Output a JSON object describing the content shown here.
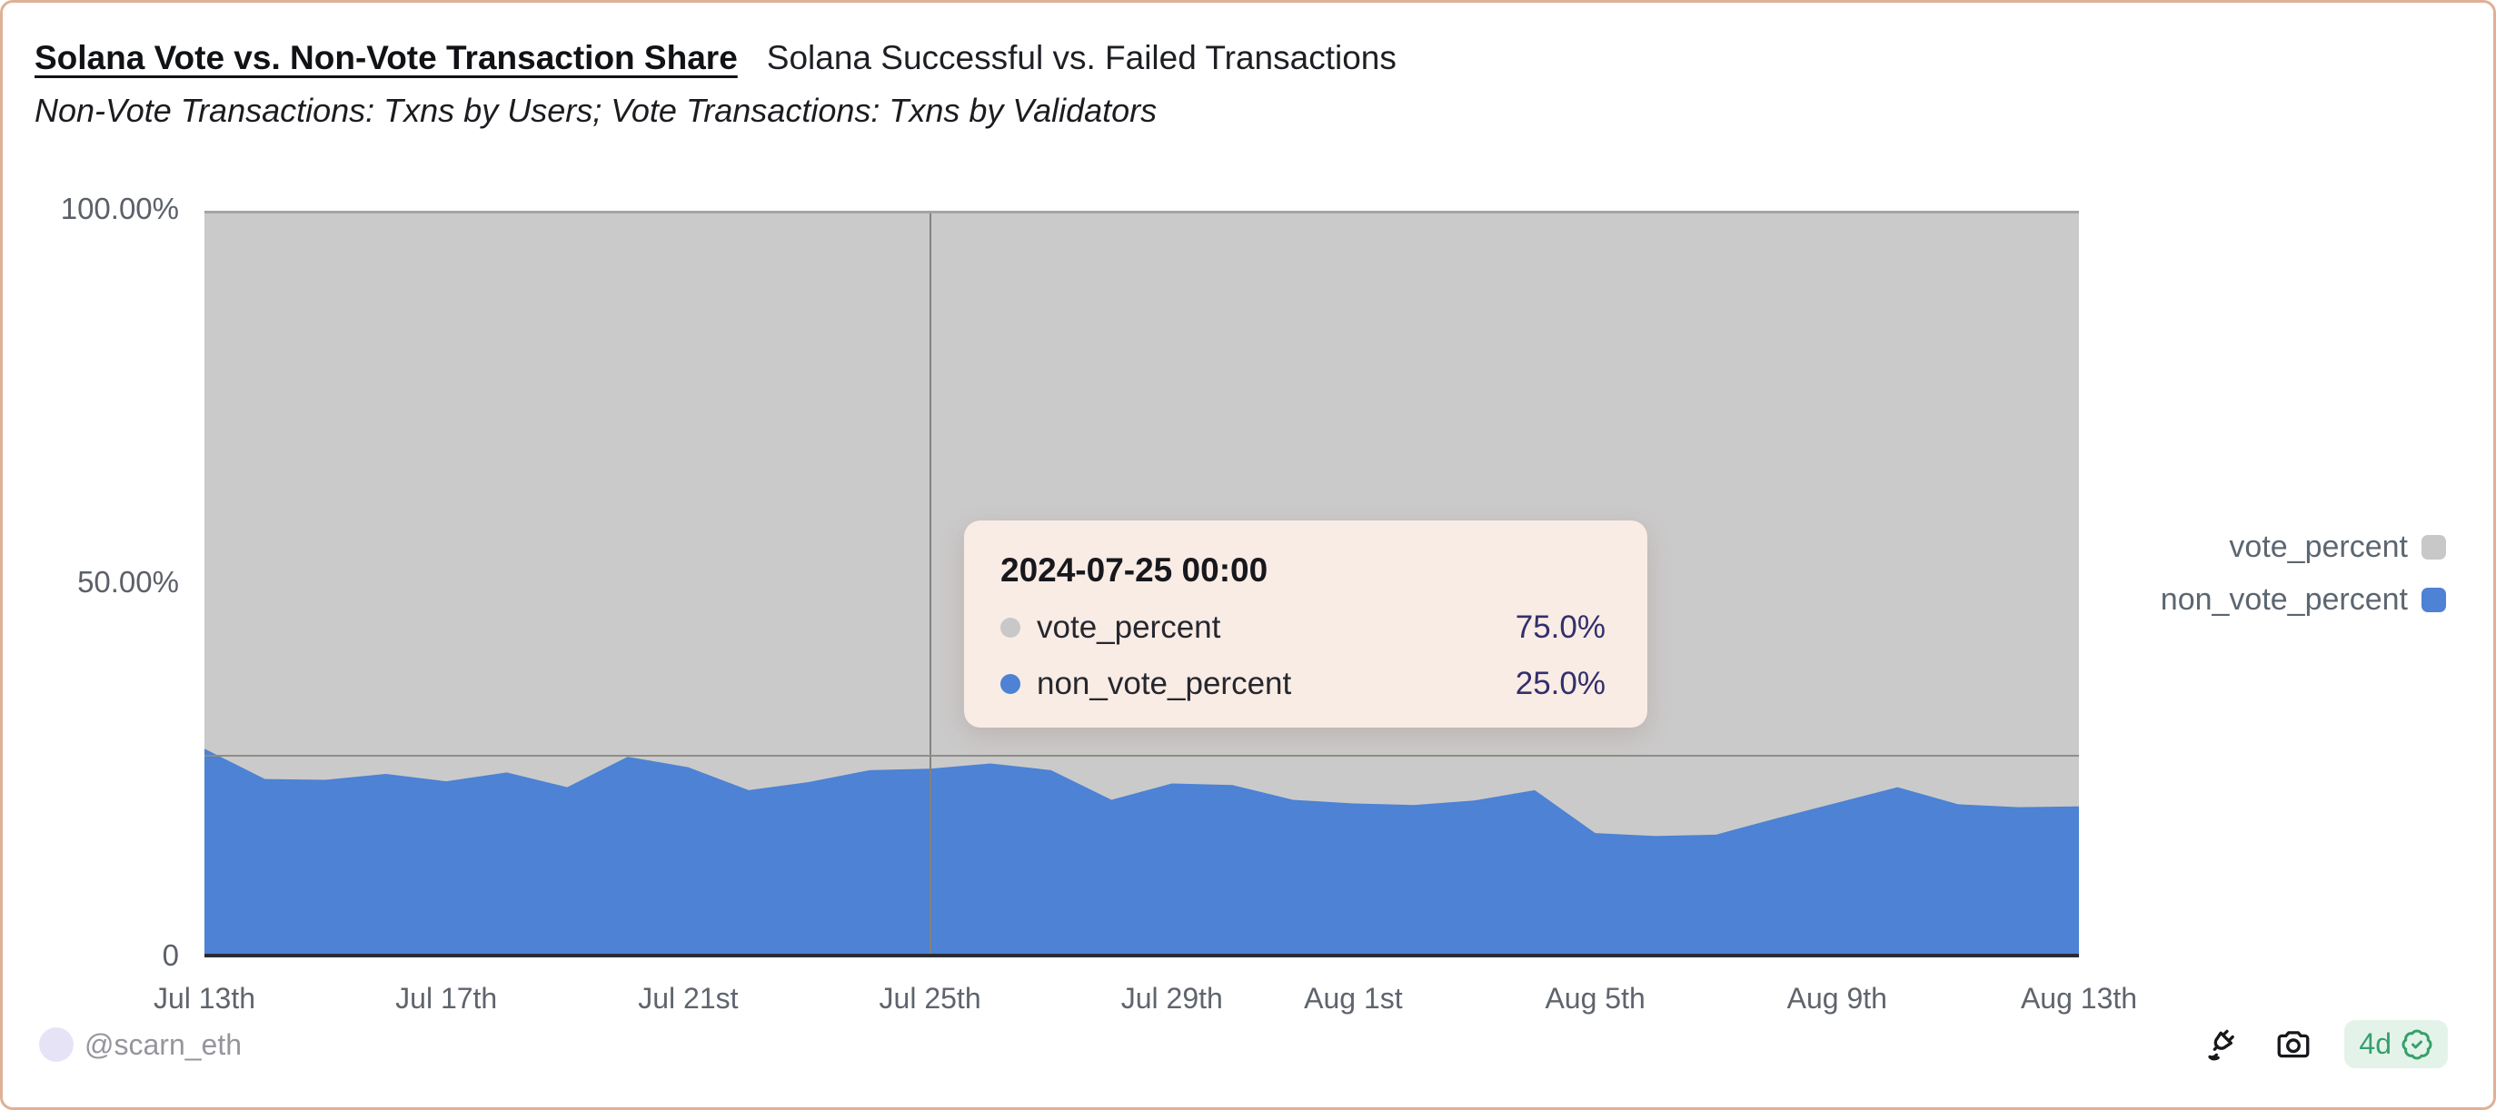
{
  "header": {
    "title": "Solana Vote vs. Non-Vote Transaction Share",
    "title_secondary": "Solana Successful vs. Failed Transactions",
    "subtitle": "Non-Vote Transactions: Txns by Users; Vote Transactions: Txns by Validators"
  },
  "colors": {
    "vote": "#c9c8c8",
    "non_vote": "#4d82d4",
    "plot_bg": "#cbcaca",
    "tooltip_bg": "#f9ece5",
    "value_text": "#322f6d",
    "pill_green": "#36a06b",
    "frame_border": "#e0b096"
  },
  "chart_data": {
    "type": "area",
    "stacked": true,
    "ylim": [
      0,
      100
    ],
    "grid": false,
    "legend_position": "right",
    "dates": [
      "2024-07-13",
      "2024-07-14",
      "2024-07-15",
      "2024-07-16",
      "2024-07-17",
      "2024-07-18",
      "2024-07-19",
      "2024-07-20",
      "2024-07-21",
      "2024-07-22",
      "2024-07-23",
      "2024-07-24",
      "2024-07-25",
      "2024-07-26",
      "2024-07-27",
      "2024-07-28",
      "2024-07-29",
      "2024-07-30",
      "2024-07-31",
      "2024-08-01",
      "2024-08-02",
      "2024-08-03",
      "2024-08-04",
      "2024-08-05",
      "2024-08-06",
      "2024-08-07",
      "2024-08-08",
      "2024-08-09",
      "2024-08-10",
      "2024-08-11",
      "2024-08-12",
      "2024-08-13"
    ],
    "series": [
      {
        "name": "vote_percent",
        "values": [
          72.3,
          76.4,
          76.5,
          75.7,
          76.7,
          75.5,
          77.5,
          73.4,
          74.8,
          77.9,
          76.8,
          75.2,
          75.0,
          74.3,
          75.2,
          79.2,
          77.0,
          77.2,
          79.2,
          79.7,
          79.9,
          79.3,
          77.9,
          83.7,
          84.1,
          83.9,
          81.7,
          79.6,
          77.5,
          79.8,
          80.2,
          80.1
        ]
      },
      {
        "name": "non_vote_percent",
        "values": [
          27.7,
          23.6,
          23.5,
          24.3,
          23.3,
          24.5,
          22.5,
          26.6,
          25.2,
          22.1,
          23.2,
          24.8,
          25.0,
          25.7,
          24.8,
          20.8,
          23.0,
          22.8,
          20.8,
          20.3,
          20.1,
          20.7,
          22.1,
          16.3,
          15.9,
          16.1,
          18.3,
          20.4,
          22.5,
          20.2,
          19.8,
          19.9
        ]
      }
    ],
    "y_ticks": [
      {
        "label": "100.00%",
        "pct": 100
      },
      {
        "label": "50.00%",
        "pct": 50
      },
      {
        "label": "0",
        "pct": 0
      }
    ],
    "x_ticks": [
      {
        "label": "Jul 13th",
        "index": 0
      },
      {
        "label": "Jul 17th",
        "index": 4
      },
      {
        "label": "Jul 21st",
        "index": 8
      },
      {
        "label": "Jul 25th",
        "index": 12
      },
      {
        "label": "Jul 29th",
        "index": 16
      },
      {
        "label": "Aug 1st",
        "index": 19
      },
      {
        "label": "Aug 5th",
        "index": 23
      },
      {
        "label": "Aug 9th",
        "index": 27
      },
      {
        "label": "Aug 13th",
        "index": 31
      }
    ],
    "crosshair": {
      "x_index": 12,
      "y_percent": 27.4
    }
  },
  "tooltip": {
    "title": "2024-07-25 00:00",
    "rows": [
      {
        "name": "vote_percent",
        "value": "75.0%"
      },
      {
        "name": "non_vote_percent",
        "value": "25.0%"
      }
    ]
  },
  "legend": {
    "items": [
      {
        "label": "vote_percent"
      },
      {
        "label": "non_vote_percent"
      }
    ]
  },
  "footer": {
    "handle": "@scarn_eth",
    "age": "4d"
  }
}
